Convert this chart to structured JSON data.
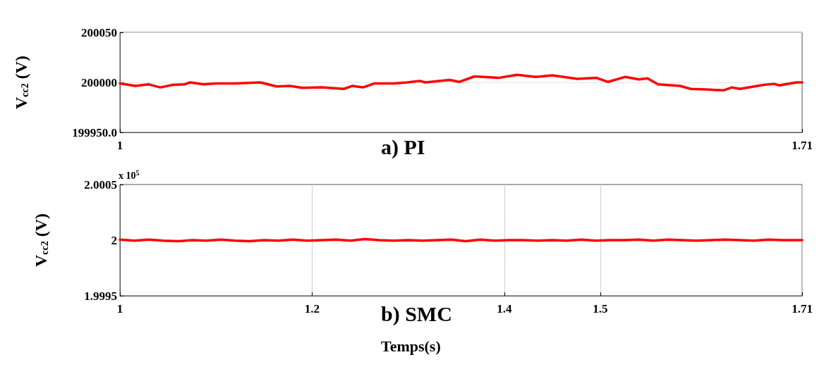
{
  "chart_data": [
    {
      "type": "line",
      "title": "a) PI",
      "ylabel": "V$_{cc2}$ (V)",
      "grid": "y",
      "line_style": "solid",
      "marker": "none",
      "xlim": [
        1,
        1.71
      ],
      "xticks": [
        1,
        1.71
      ],
      "ylim": [
        199950,
        200050
      ],
      "yticks": [
        {
          "value": 199950,
          "label": "199950.0"
        },
        200000,
        200050
      ],
      "series": [
        {
          "color": "#ff0000",
          "x": [
            1.0,
            1.016,
            1.03,
            1.042,
            1.055,
            1.067,
            1.073,
            1.087,
            1.1,
            1.12,
            1.146,
            1.163,
            1.177,
            1.19,
            1.21,
            1.233,
            1.242,
            1.253,
            1.265,
            1.285,
            1.299,
            1.312,
            1.318,
            1.343,
            1.353,
            1.369,
            1.394,
            1.413,
            1.433,
            1.45,
            1.476,
            1.496,
            1.508,
            1.526,
            1.54,
            1.549,
            1.56,
            1.583,
            1.594,
            1.61,
            1.628,
            1.637,
            1.645,
            1.67,
            1.681,
            1.686,
            1.704,
            1.71
          ],
          "values": [
            199999,
            199996.5,
            199998,
            199995,
            199997.5,
            199998,
            200000,
            199998,
            199999,
            199999,
            200000,
            199996,
            199996.5,
            199994.5,
            199995,
            199993.5,
            199996.5,
            199995,
            199999,
            199999,
            200000,
            200001.5,
            200000,
            200002.5,
            200000.5,
            200006,
            200004.5,
            200007.5,
            200005.5,
            200007,
            200003.5,
            200004.5,
            200000.5,
            200005.5,
            200003,
            200004,
            199998,
            199996.5,
            199993.5,
            199993,
            199992,
            199995,
            199993.5,
            199997.5,
            199998.5,
            199997,
            200000,
            200000
          ]
        }
      ]
    },
    {
      "type": "line",
      "title": "b) SMC",
      "xlabel": "Temps(s)",
      "ylabel": "V$_{cc2}$ (V)",
      "grid": "x",
      "line_style": "solid",
      "marker": "none",
      "annotations": [
        "x 10$^{5}$"
      ],
      "xlim": [
        1,
        1.71
      ],
      "xticks": [
        1,
        1.2,
        1.4,
        1.5,
        1.71
      ],
      "ylim": [
        1.9995,
        2.0005
      ],
      "yticks": [
        1.9995,
        2,
        2.0005
      ],
      "series": [
        {
          "color": "#ff0000",
          "x": [
            1.0,
            1.015,
            1.03,
            1.045,
            1.06,
            1.075,
            1.09,
            1.105,
            1.12,
            1.135,
            1.15,
            1.165,
            1.18,
            1.195,
            1.21,
            1.225,
            1.24,
            1.255,
            1.27,
            1.285,
            1.3,
            1.315,
            1.33,
            1.345,
            1.36,
            1.375,
            1.39,
            1.405,
            1.42,
            1.435,
            1.45,
            1.465,
            1.48,
            1.495,
            1.51,
            1.525,
            1.54,
            1.555,
            1.57,
            1.585,
            1.6,
            1.615,
            1.63,
            1.645,
            1.66,
            1.675,
            1.69,
            1.71
          ],
          "values": [
            2.000005,
            1.999995,
            2.000005,
            1.999995,
            1.99999,
            2,
            1.999995,
            2.000005,
            1.999995,
            1.99999,
            2,
            1.999995,
            2.000005,
            1.999995,
            2,
            2.000005,
            1.999995,
            2.00001,
            2,
            1.999995,
            2,
            1.999995,
            2,
            2.000005,
            1.99999,
            2.000005,
            1.999995,
            2,
            2,
            1.999995,
            2,
            1.999995,
            2.000005,
            1.999995,
            2,
            2,
            2.000005,
            1.999995,
            2.000005,
            2,
            1.999995,
            2,
            2.000005,
            2,
            1.999995,
            2.000005,
            2,
            2
          ]
        }
      ]
    }
  ]
}
